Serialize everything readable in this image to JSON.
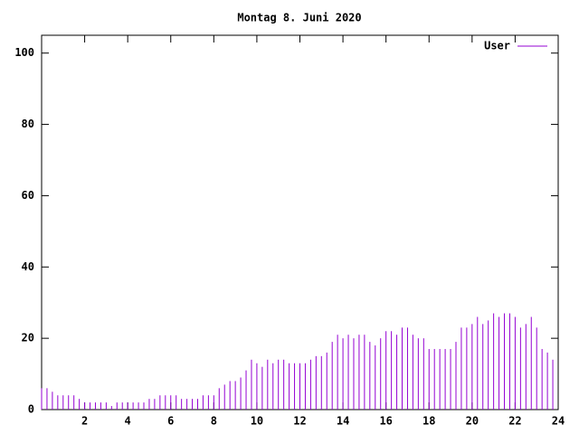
{
  "chart_data": {
    "type": "impulses",
    "title": "Montag 8. Juni 2020",
    "x": [
      0,
      0.25,
      0.5,
      0.75,
      1,
      1.25,
      1.5,
      1.75,
      2,
      2.25,
      2.5,
      2.75,
      3,
      3.25,
      3.5,
      3.75,
      4,
      4.25,
      4.5,
      4.75,
      5,
      5.25,
      5.5,
      5.75,
      6,
      6.25,
      6.5,
      6.75,
      7,
      7.25,
      7.5,
      7.75,
      8,
      8.25,
      8.5,
      8.75,
      9,
      9.25,
      9.5,
      9.75,
      10,
      10.25,
      10.5,
      10.75,
      11,
      11.25,
      11.5,
      11.75,
      12,
      12.25,
      12.5,
      12.75,
      13,
      13.25,
      13.5,
      13.75,
      14,
      14.25,
      14.5,
      14.75,
      15,
      15.25,
      15.5,
      15.75,
      16,
      16.25,
      16.5,
      16.75,
      17,
      17.25,
      17.5,
      17.75,
      18,
      18.25,
      18.5,
      18.75,
      19,
      19.25,
      19.5,
      19.75,
      20,
      20.25,
      20.5,
      20.75,
      21,
      21.25,
      21.5,
      21.75,
      22,
      22.25,
      22.5,
      22.75,
      23,
      23.25,
      23.5,
      23.75
    ],
    "series": [
      {
        "name": "User",
        "color": "#9400d3",
        "values": [
          6,
          6,
          5,
          4,
          4,
          4,
          4,
          3,
          2,
          2,
          2,
          2,
          2,
          1,
          2,
          2,
          2,
          2,
          2,
          2,
          3,
          3,
          4,
          4,
          4,
          4,
          3,
          3,
          3,
          3,
          4,
          4,
          4,
          6,
          7,
          8,
          8,
          9,
          11,
          14,
          13,
          12,
          14,
          13,
          14,
          14,
          13,
          13,
          13,
          13,
          14,
          15,
          15,
          16,
          19,
          21,
          20,
          21,
          20,
          21,
          21,
          19,
          18,
          20,
          22,
          22,
          21,
          23,
          23,
          21,
          20,
          20,
          17,
          17,
          17,
          17,
          17,
          19,
          23,
          23,
          24,
          26,
          24,
          25,
          27,
          26,
          27,
          27,
          26,
          23,
          24,
          26,
          23,
          17,
          16,
          14
        ]
      }
    ],
    "xlim": [
      0,
      24
    ],
    "xticks": [
      2,
      4,
      6,
      8,
      10,
      12,
      14,
      16,
      18,
      20,
      22,
      24
    ],
    "ylim": [
      0,
      105
    ],
    "yticks": [
      0,
      20,
      40,
      60,
      80,
      100
    ],
    "legend": "top-right"
  }
}
